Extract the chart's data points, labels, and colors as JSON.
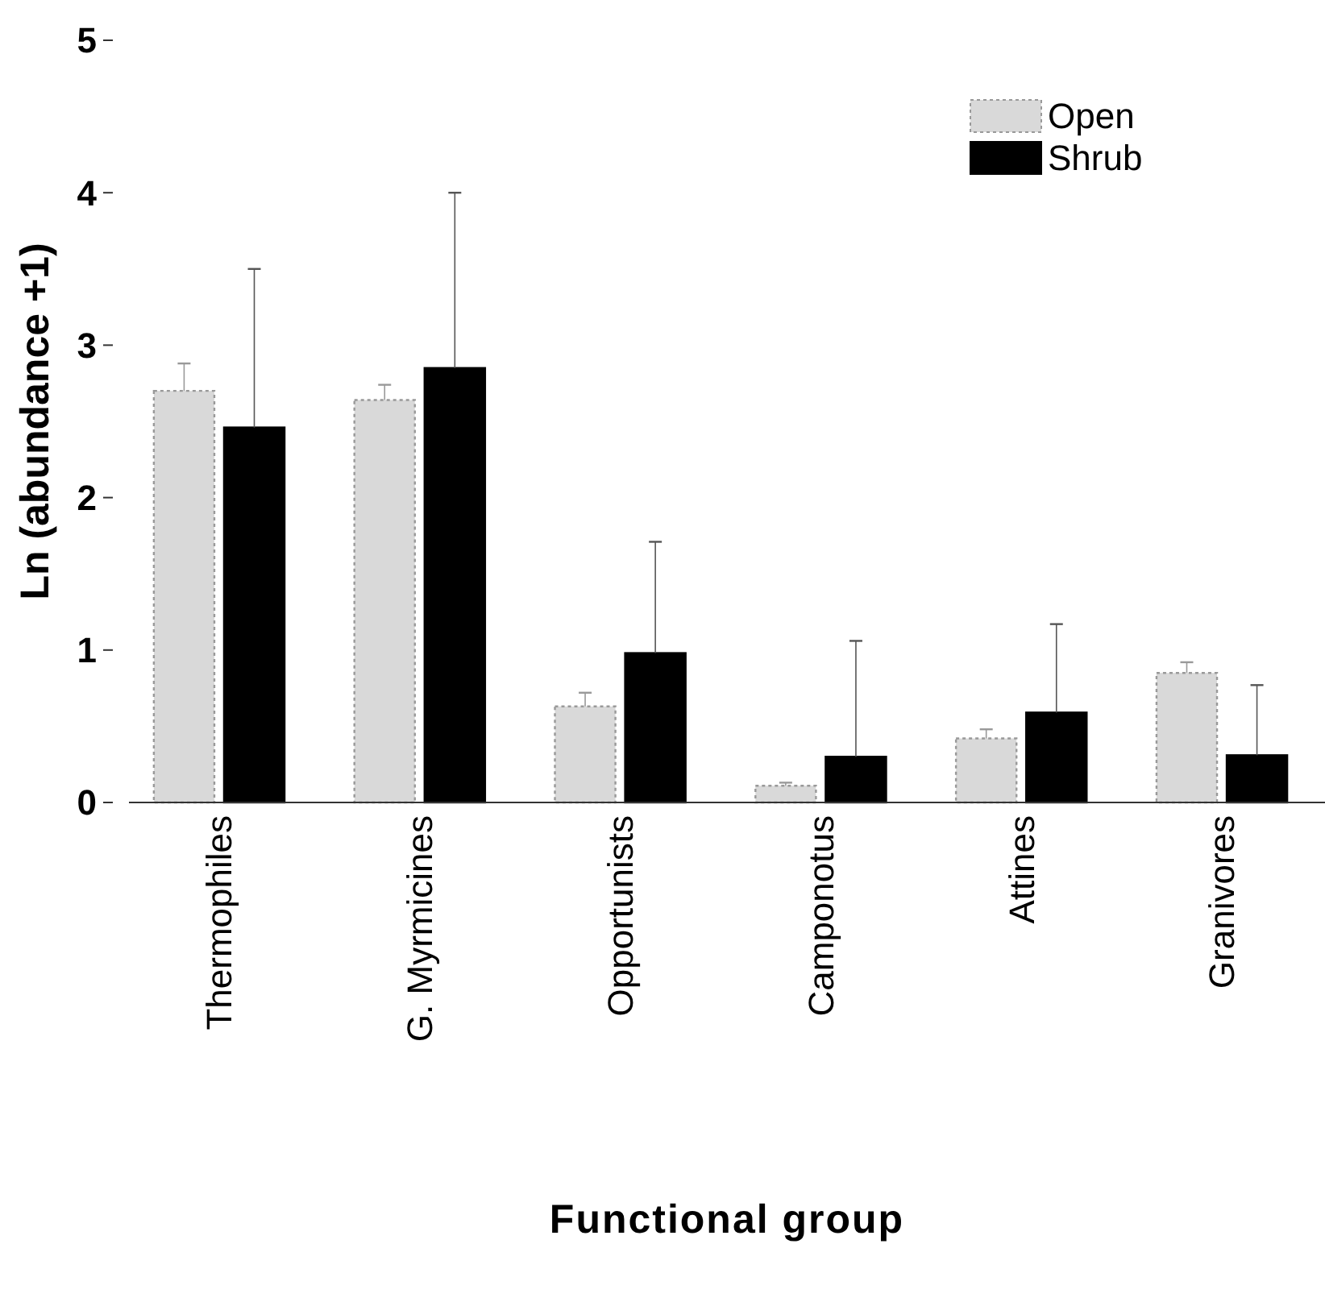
{
  "chart_data": {
    "type": "bar",
    "xlabel": "Functional group",
    "ylabel": "Ln (abundance +1)",
    "categories": [
      "Thermophiles",
      "G. Myrmicines",
      "Opportunists",
      "Camponotus",
      "Attines",
      "Granivores"
    ],
    "series": [
      {
        "name": "Open",
        "color": "#d9d9d9",
        "values": [
          2.7,
          2.64,
          0.63,
          0.11,
          0.42,
          0.85
        ],
        "errors": [
          [
            2.7,
            2.88
          ],
          [
            2.64,
            2.74
          ],
          [
            0.63,
            0.72
          ],
          [
            0.11,
            0.13
          ],
          [
            0.42,
            0.48
          ],
          [
            0.85,
            0.92
          ]
        ]
      },
      {
        "name": "Shrub",
        "color": "#000000",
        "values": [
          2.46,
          2.85,
          0.98,
          0.3,
          0.59,
          0.31
        ],
        "errors": [
          [
            2.46,
            3.5
          ],
          [
            2.85,
            4.0
          ],
          [
            0.98,
            1.71
          ],
          [
            0.3,
            1.06
          ],
          [
            0.59,
            1.17
          ],
          [
            0.31,
            0.77
          ]
        ]
      }
    ],
    "ylim": [
      0,
      5
    ],
    "yticks": [
      0,
      1,
      2,
      3,
      4,
      5
    ],
    "grid": false,
    "legend": "top right"
  }
}
